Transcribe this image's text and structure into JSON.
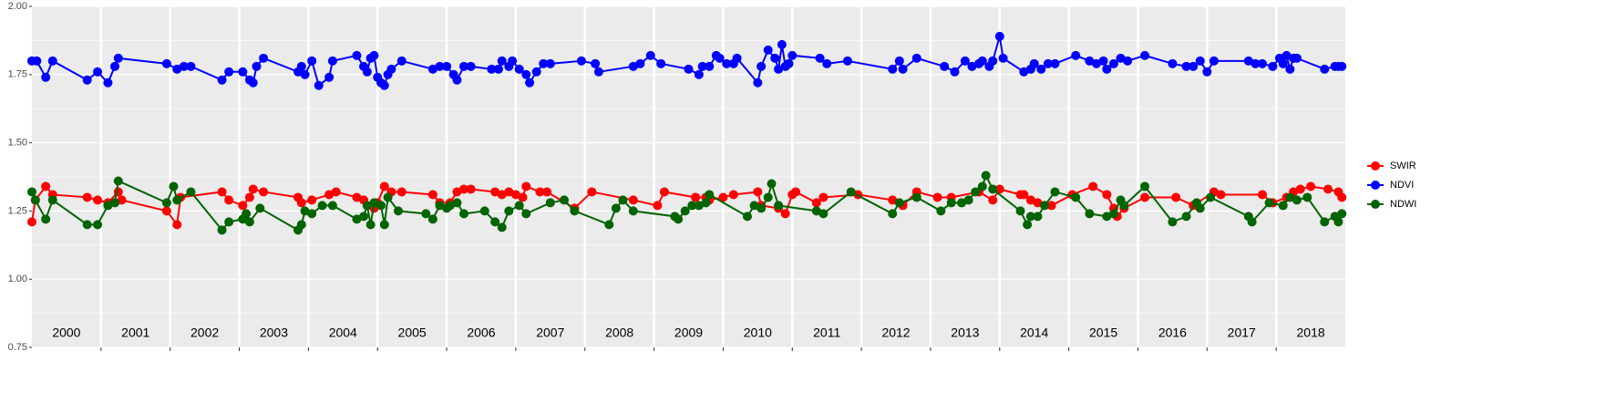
{
  "chart_data": {
    "type": "line",
    "xlim": [
      2000,
      2019
    ],
    "ylim": [
      0.75,
      2.0
    ],
    "yticks": [
      0.75,
      {
        "value": 1.0,
        "label": "1.00"
      },
      1.25,
      {
        "value": 1.5,
        "label": "1.50"
      },
      1.75,
      {
        "value": 2.0,
        "label": "2.00"
      }
    ],
    "xticks": [
      {
        "value": 2000.5,
        "label": "2000"
      },
      {
        "value": 2001.5,
        "label": "2001"
      },
      {
        "value": 2002.5,
        "label": "2002"
      },
      {
        "value": 2003.5,
        "label": "2003"
      },
      {
        "value": 2004.5,
        "label": "2004"
      },
      {
        "value": 2005.5,
        "label": "2005"
      },
      {
        "value": 2006.5,
        "label": "2006"
      },
      {
        "value": 2007.5,
        "label": "2007"
      },
      {
        "value": 2008.5,
        "label": "2008"
      },
      {
        "value": 2009.5,
        "label": "2009"
      },
      {
        "value": 2010.5,
        "label": "2010"
      },
      {
        "value": 2011.5,
        "label": "2011"
      },
      {
        "value": 2012.5,
        "label": "2012"
      },
      {
        "value": 2013.5,
        "label": "2013"
      },
      {
        "value": 2014.5,
        "label": "2014"
      },
      {
        "value": 2015.5,
        "label": "2015"
      },
      {
        "value": 2016.5,
        "label": "2016"
      },
      {
        "value": 2017.5,
        "label": "2017"
      },
      {
        "value": 2018.5,
        "label": "2018"
      }
    ],
    "vlines": [
      2001,
      2002,
      2003,
      2004,
      2005,
      2006,
      2007,
      2008,
      2009,
      2010,
      2011,
      2012,
      2013,
      2014,
      2015,
      2016,
      2017,
      2018
    ],
    "grid": true,
    "legend": "right",
    "series": [
      {
        "name": "SWIR",
        "color": "#ff0000",
        "x": [
          2000.0,
          2000.05,
          2000.2,
          2000.3,
          2000.8,
          2000.95,
          2001.1,
          2001.25,
          2001.3,
          2001.95,
          2002.1,
          2002.15,
          2002.75,
          2002.85,
          2003.05,
          2003.15,
          2003.2,
          2003.35,
          2003.85,
          2003.9,
          2004.05,
          2004.3,
          2004.4,
          2004.7,
          2004.8,
          2004.95,
          2005.0,
          2005.1,
          2005.2,
          2005.35,
          2005.8,
          2005.9,
          2006.05,
          2006.15,
          2006.25,
          2006.35,
          2006.7,
          2006.8,
          2006.9,
          2007.0,
          2007.1,
          2007.15,
          2007.35,
          2007.45,
          2007.85,
          2008.1,
          2008.7,
          2009.05,
          2009.15,
          2009.6,
          2009.75,
          2009.8,
          2010.0,
          2010.15,
          2010.5,
          2010.55,
          2010.8,
          2010.9,
          2011.0,
          2011.05,
          2011.35,
          2011.45,
          2011.95,
          2012.45,
          2012.6,
          2012.8,
          2013.1,
          2013.3,
          2013.7,
          2013.9,
          2014.0,
          2014.3,
          2014.35,
          2014.45,
          2014.55,
          2014.75,
          2015.05,
          2015.35,
          2015.55,
          2015.65,
          2015.7,
          2015.8,
          2016.1,
          2016.55,
          2016.8,
          2017.1,
          2017.2,
          2017.8,
          2017.95,
          2018.15,
          2018.25,
          2018.35,
          2018.5,
          2018.75,
          2018.9,
          2018.95
        ],
        "values": [
          1.21,
          1.29,
          1.34,
          1.31,
          1.3,
          1.29,
          1.28,
          1.32,
          1.29,
          1.25,
          1.2,
          1.3,
          1.32,
          1.29,
          1.27,
          1.3,
          1.33,
          1.32,
          1.3,
          1.28,
          1.29,
          1.31,
          1.32,
          1.3,
          1.29,
          1.26,
          1.28,
          1.34,
          1.32,
          1.32,
          1.31,
          1.28,
          1.28,
          1.32,
          1.33,
          1.33,
          1.32,
          1.31,
          1.32,
          1.31,
          1.3,
          1.34,
          1.32,
          1.32,
          1.26,
          1.32,
          1.29,
          1.27,
          1.32,
          1.3,
          1.3,
          1.29,
          1.3,
          1.31,
          1.32,
          1.27,
          1.26,
          1.24,
          1.31,
          1.32,
          1.28,
          1.3,
          1.31,
          1.29,
          1.27,
          1.32,
          1.3,
          1.3,
          1.32,
          1.29,
          1.33,
          1.31,
          1.31,
          1.29,
          1.28,
          1.27,
          1.31,
          1.34,
          1.31,
          1.26,
          1.23,
          1.26,
          1.3,
          1.3,
          1.27,
          1.32,
          1.31,
          1.31,
          1.28,
          1.3,
          1.32,
          1.33,
          1.34,
          1.33,
          1.32,
          1.3
        ]
      },
      {
        "name": "NDVI",
        "color": "#0000ff",
        "x": [
          2000.0,
          2000.07,
          2000.2,
          2000.3,
          2000.8,
          2000.95,
          2001.1,
          2001.2,
          2001.25,
          2001.95,
          2002.1,
          2002.2,
          2002.3,
          2002.75,
          2002.85,
          2003.05,
          2003.15,
          2003.2,
          2003.25,
          2003.35,
          2003.85,
          2003.9,
          2003.95,
          2004.05,
          2004.15,
          2004.3,
          2004.35,
          2004.7,
          2004.8,
          2004.85,
          2004.9,
          2004.95,
          2005.0,
          2005.05,
          2005.1,
          2005.15,
          2005.2,
          2005.35,
          2005.8,
          2005.9,
          2006.0,
          2006.1,
          2006.15,
          2006.25,
          2006.35,
          2006.65,
          2006.75,
          2006.8,
          2006.9,
          2006.95,
          2007.05,
          2007.15,
          2007.2,
          2007.3,
          2007.4,
          2007.5,
          2007.95,
          2008.15,
          2008.2,
          2008.7,
          2008.8,
          2008.95,
          2009.1,
          2009.5,
          2009.65,
          2009.7,
          2009.8,
          2009.9,
          2009.95,
          2010.05,
          2010.15,
          2010.2,
          2010.5,
          2010.55,
          2010.65,
          2010.75,
          2010.8,
          2010.85,
          2010.9,
          2010.95,
          2011.0,
          2011.4,
          2011.5,
          2011.8,
          2012.45,
          2012.55,
          2012.6,
          2012.8,
          2013.2,
          2013.35,
          2013.5,
          2013.6,
          2013.7,
          2013.75,
          2013.85,
          2013.9,
          2014.0,
          2014.05,
          2014.35,
          2014.45,
          2014.5,
          2014.6,
          2014.7,
          2014.8,
          2015.1,
          2015.3,
          2015.4,
          2015.5,
          2015.55,
          2015.65,
          2015.75,
          2015.85,
          2016.1,
          2016.5,
          2016.7,
          2016.8,
          2016.9,
          2017.0,
          2017.1,
          2017.6,
          2017.7,
          2017.8,
          2017.95,
          2018.05,
          2018.1,
          2018.15,
          2018.2,
          2018.25,
          2018.3,
          2018.7,
          2018.85,
          2018.9,
          2018.95
        ],
        "values": [
          1.8,
          1.8,
          1.74,
          1.8,
          1.73,
          1.76,
          1.72,
          1.78,
          1.81,
          1.79,
          1.77,
          1.78,
          1.78,
          1.73,
          1.76,
          1.76,
          1.73,
          1.72,
          1.78,
          1.81,
          1.76,
          1.78,
          1.75,
          1.8,
          1.71,
          1.74,
          1.8,
          1.82,
          1.78,
          1.76,
          1.81,
          1.82,
          1.74,
          1.72,
          1.71,
          1.75,
          1.77,
          1.8,
          1.77,
          1.78,
          1.78,
          1.75,
          1.73,
          1.78,
          1.78,
          1.77,
          1.77,
          1.8,
          1.78,
          1.8,
          1.77,
          1.75,
          1.72,
          1.76,
          1.79,
          1.79,
          1.8,
          1.79,
          1.76,
          1.78,
          1.79,
          1.82,
          1.79,
          1.77,
          1.75,
          1.78,
          1.78,
          1.82,
          1.81,
          1.79,
          1.79,
          1.81,
          1.72,
          1.78,
          1.84,
          1.81,
          1.77,
          1.86,
          1.78,
          1.79,
          1.82,
          1.81,
          1.79,
          1.8,
          1.77,
          1.8,
          1.77,
          1.81,
          1.78,
          1.76,
          1.8,
          1.78,
          1.79,
          1.8,
          1.78,
          1.8,
          1.89,
          1.81,
          1.76,
          1.77,
          1.79,
          1.77,
          1.79,
          1.79,
          1.82,
          1.8,
          1.79,
          1.8,
          1.77,
          1.79,
          1.81,
          1.8,
          1.82,
          1.79,
          1.78,
          1.78,
          1.8,
          1.76,
          1.8,
          1.8,
          1.79,
          1.79,
          1.78,
          1.81,
          1.79,
          1.82,
          1.77,
          1.81,
          1.81,
          1.77,
          1.78,
          1.78,
          1.78
        ]
      },
      {
        "name": "NDWI",
        "color": "#006400",
        "x": [
          2000.0,
          2000.05,
          2000.2,
          2000.3,
          2000.8,
          2000.95,
          2001.1,
          2001.2,
          2001.25,
          2001.95,
          2002.05,
          2002.1,
          2002.3,
          2002.75,
          2002.85,
          2003.05,
          2003.1,
          2003.15,
          2003.3,
          2003.85,
          2003.9,
          2003.95,
          2004.05,
          2004.2,
          2004.35,
          2004.7,
          2004.8,
          2004.85,
          2004.9,
          2004.95,
          2005.05,
          2005.1,
          2005.15,
          2005.3,
          2005.7,
          2005.8,
          2005.9,
          2006.0,
          2006.05,
          2006.15,
          2006.25,
          2006.55,
          2006.7,
          2006.8,
          2006.9,
          2007.05,
          2007.15,
          2007.5,
          2007.7,
          2007.85,
          2008.35,
          2008.45,
          2008.55,
          2008.7,
          2009.3,
          2009.35,
          2009.45,
          2009.55,
          2009.65,
          2009.75,
          2009.8,
          2010.35,
          2010.45,
          2010.55,
          2010.65,
          2010.7,
          2010.8,
          2011.35,
          2011.45,
          2011.85,
          2012.45,
          2012.55,
          2012.8,
          2013.15,
          2013.3,
          2013.45,
          2013.55,
          2013.65,
          2013.75,
          2013.8,
          2013.9,
          2014.3,
          2014.4,
          2014.45,
          2014.55,
          2014.65,
          2014.8,
          2015.1,
          2015.3,
          2015.55,
          2015.65,
          2015.75,
          2015.8,
          2016.1,
          2016.5,
          2016.7,
          2016.85,
          2016.9,
          2017.05,
          2017.6,
          2017.65,
          2017.9,
          2018.1,
          2018.2,
          2018.3,
          2018.45,
          2018.7,
          2018.85,
          2018.9,
          2018.95
        ],
        "values": [
          1.32,
          1.29,
          1.22,
          1.29,
          1.2,
          1.2,
          1.27,
          1.28,
          1.36,
          1.28,
          1.34,
          1.29,
          1.32,
          1.18,
          1.21,
          1.22,
          1.24,
          1.21,
          1.26,
          1.18,
          1.2,
          1.25,
          1.24,
          1.27,
          1.27,
          1.22,
          1.23,
          1.27,
          1.2,
          1.28,
          1.27,
          1.2,
          1.3,
          1.25,
          1.24,
          1.22,
          1.27,
          1.26,
          1.27,
          1.28,
          1.24,
          1.25,
          1.21,
          1.19,
          1.25,
          1.27,
          1.24,
          1.28,
          1.29,
          1.25,
          1.2,
          1.26,
          1.29,
          1.25,
          1.23,
          1.22,
          1.25,
          1.27,
          1.27,
          1.28,
          1.31,
          1.23,
          1.27,
          1.26,
          1.3,
          1.35,
          1.27,
          1.25,
          1.24,
          1.32,
          1.24,
          1.28,
          1.3,
          1.25,
          1.28,
          1.28,
          1.29,
          1.32,
          1.34,
          1.38,
          1.33,
          1.25,
          1.2,
          1.23,
          1.23,
          1.27,
          1.32,
          1.3,
          1.24,
          1.23,
          1.24,
          1.29,
          1.27,
          1.34,
          1.21,
          1.23,
          1.28,
          1.26,
          1.3,
          1.23,
          1.21,
          1.28,
          1.27,
          1.3,
          1.29,
          1.3,
          1.21,
          1.23,
          1.21,
          1.24
        ]
      }
    ]
  }
}
